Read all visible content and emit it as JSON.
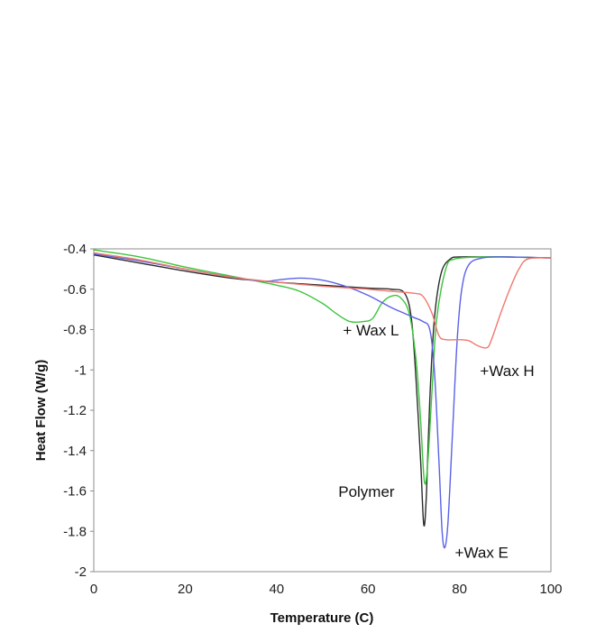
{
  "chart_data": {
    "type": "line",
    "title": "",
    "xlabel": "Temperature (C)",
    "ylabel": "Heat Flow (W/g)",
    "xlim": [
      0,
      100
    ],
    "ylim": [
      -2,
      -0.4
    ],
    "xticks": [
      "0",
      "20",
      "40",
      "60",
      "80",
      "100"
    ],
    "yticks": [
      "-0.4",
      "-0.6",
      "-0.8",
      "-1",
      "-1.2",
      "-1.4",
      "-1.6",
      "-1.8",
      "-2"
    ],
    "grid": false,
    "legend": "none",
    "annotations": [
      {
        "text": "+ Wax L",
        "x": 54.5,
        "y": -0.83
      },
      {
        "text": "+Wax H",
        "x": 84.5,
        "y": -1.03
      },
      {
        "text": "Polymer",
        "x": 53.5,
        "y": -1.63
      },
      {
        "text": "+Wax E",
        "x": 79,
        "y": -1.93
      }
    ],
    "series": [
      {
        "color": "#2b2b2b",
        "x": [
          0,
          10,
          20,
          30,
          40,
          50,
          60,
          65,
          68,
          69.5,
          70.5,
          71.5,
          72.2,
          72.8,
          73.5,
          74.5,
          76,
          78,
          80,
          85,
          90,
          100
        ],
        "y": [
          -0.43,
          -0.47,
          -0.51,
          -0.545,
          -0.565,
          -0.58,
          -0.595,
          -0.6,
          -0.62,
          -0.75,
          -1.05,
          -1.45,
          -1.77,
          -1.6,
          -1.15,
          -0.75,
          -0.52,
          -0.45,
          -0.44,
          -0.44,
          -0.44,
          -0.445
        ]
      },
      {
        "color": "#3cc43c",
        "x": [
          0,
          10,
          20,
          30,
          40,
          45,
          50,
          53,
          56,
          59,
          61,
          63,
          65,
          67,
          69,
          70.5,
          71.5,
          72.3,
          73,
          74,
          75,
          77,
          79,
          85,
          90,
          100
        ],
        "y": [
          -0.405,
          -0.44,
          -0.49,
          -0.535,
          -0.58,
          -0.61,
          -0.67,
          -0.72,
          -0.76,
          -0.76,
          -0.745,
          -0.67,
          -0.635,
          -0.64,
          -0.72,
          -0.95,
          -1.25,
          -1.55,
          -1.48,
          -1.1,
          -0.75,
          -0.5,
          -0.45,
          -0.44,
          -0.44,
          -0.445
        ]
      },
      {
        "color": "#5a62e6",
        "x": [
          0,
          10,
          20,
          30,
          37,
          40,
          45,
          50,
          55,
          60,
          65,
          68,
          70,
          72,
          73.5,
          74.5,
          75.5,
          76.2,
          76.8,
          77.5,
          78.5,
          79.5,
          80.5,
          82,
          85,
          90,
          100
        ],
        "y": [
          -0.425,
          -0.46,
          -0.5,
          -0.54,
          -0.56,
          -0.555,
          -0.545,
          -0.555,
          -0.585,
          -0.63,
          -0.69,
          -0.72,
          -0.74,
          -0.76,
          -0.8,
          -1.0,
          -1.45,
          -1.8,
          -1.88,
          -1.75,
          -1.3,
          -0.85,
          -0.6,
          -0.48,
          -0.445,
          -0.44,
          -0.445
        ]
      },
      {
        "color": "#f0786e",
        "x": [
          0,
          10,
          20,
          30,
          40,
          50,
          60,
          65,
          70,
          72,
          74,
          75.5,
          77,
          80,
          82,
          84,
          86,
          87,
          89,
          91,
          93,
          95,
          100
        ],
        "y": [
          -0.42,
          -0.455,
          -0.5,
          -0.54,
          -0.565,
          -0.585,
          -0.6,
          -0.61,
          -0.62,
          -0.635,
          -0.72,
          -0.83,
          -0.85,
          -0.85,
          -0.855,
          -0.88,
          -0.89,
          -0.85,
          -0.72,
          -0.6,
          -0.5,
          -0.45,
          -0.445
        ]
      }
    ]
  }
}
